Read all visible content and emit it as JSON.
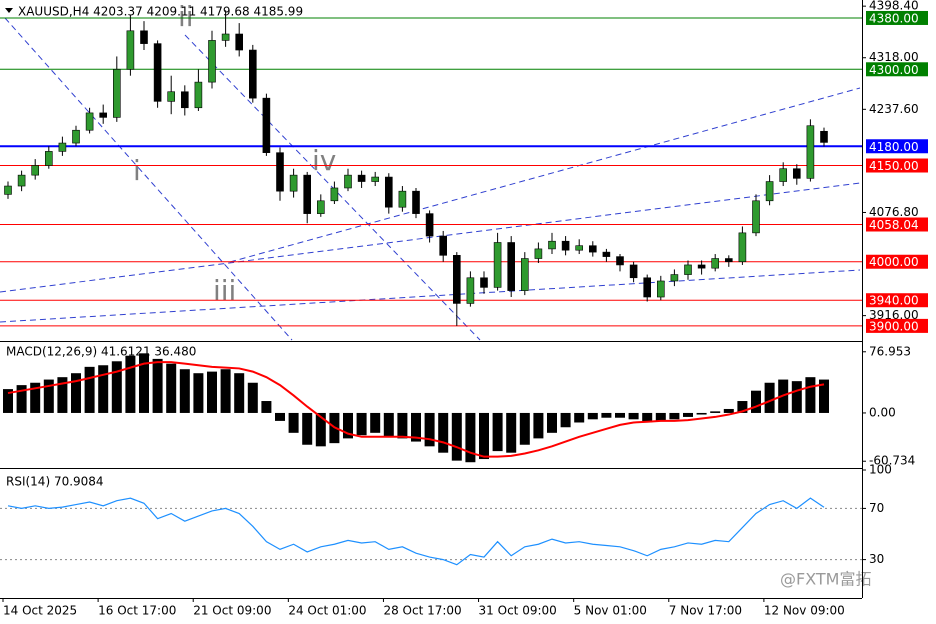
{
  "watermark": "@FXTM富拓",
  "chart_data": [
    {
      "type": "candlestick",
      "title": "XAUUSD,H4  4203.37 4209.11 4179.68 4185.99",
      "open": [
        4105,
        4118,
        4135,
        4150,
        4172,
        4185,
        4205,
        4232,
        4225,
        4300,
        4360,
        4340,
        4250,
        4265,
        4240,
        4280,
        4345,
        4355,
        4330,
        4255,
        4170,
        4110,
        4135,
        4075,
        4095,
        4115,
        4135,
        4125,
        4132,
        4085,
        4110,
        4075,
        4040,
        4010,
        3935,
        3975,
        3960,
        4030,
        3955,
        4005,
        4020,
        4032,
        4018,
        4025,
        4015,
        4008,
        3995,
        3975,
        3945,
        3970,
        3980,
        3995,
        3990,
        4005,
        4000,
        4045,
        4095,
        4125,
        4145,
        4130,
        4203.37
      ],
      "high": [
        4125,
        4142,
        4160,
        4180,
        4195,
        4212,
        4240,
        4245,
        4320,
        4385,
        4375,
        4345,
        4290,
        4275,
        4300,
        4360,
        4392,
        4372,
        4338,
        4262,
        4178,
        4145,
        4140,
        4105,
        4125,
        4145,
        4142,
        4140,
        4138,
        4118,
        4115,
        4080,
        4048,
        4015,
        3985,
        3985,
        4045,
        4040,
        4015,
        4030,
        4045,
        4040,
        4035,
        4032,
        4020,
        4012,
        4000,
        3980,
        3978,
        3988,
        4002,
        4002,
        4012,
        4010,
        4055,
        4105,
        4135,
        4155,
        4152,
        4222,
        4209.11
      ],
      "low": [
        4098,
        4110,
        4128,
        4145,
        4165,
        4180,
        4200,
        4215,
        4218,
        4290,
        4330,
        4240,
        4230,
        4228,
        4235,
        4270,
        4335,
        4320,
        4248,
        4165,
        4095,
        4100,
        4060,
        4070,
        4090,
        4110,
        4115,
        4118,
        4075,
        4078,
        4068,
        4030,
        4000,
        3900,
        3930,
        3950,
        3955,
        3945,
        3948,
        3998,
        4012,
        4010,
        4012,
        4008,
        4000,
        3985,
        3968,
        3938,
        3940,
        3962,
        3972,
        3980,
        3985,
        3992,
        3995,
        4040,
        4088,
        4118,
        4120,
        4125,
        4179.68
      ],
      "close": [
        4118,
        4135,
        4150,
        4172,
        4185,
        4205,
        4232,
        4225,
        4300,
        4360,
        4340,
        4250,
        4265,
        4240,
        4280,
        4345,
        4355,
        4330,
        4255,
        4170,
        4110,
        4135,
        4075,
        4095,
        4115,
        4135,
        4125,
        4132,
        4085,
        4110,
        4075,
        4040,
        4010,
        3935,
        3975,
        3960,
        4030,
        3955,
        4005,
        4020,
        4032,
        4018,
        4025,
        4015,
        4008,
        3995,
        3975,
        3945,
        3970,
        3980,
        3995,
        3990,
        4005,
        4000,
        4045,
        4095,
        4125,
        4145,
        4130,
        4212,
        4185.99
      ],
      "up_color": "#2f9a2f",
      "down_color": "#000000",
      "ylim": [
        3878,
        4408
      ],
      "yticks": [
        {
          "value": 4398.4,
          "label": "4398.40"
        },
        {
          "value": 4318,
          "label": "4318.00"
        },
        {
          "value": 4237.6,
          "label": "4237.60"
        },
        {
          "value": 4076.8,
          "label": "4076.80"
        },
        {
          "value": 3916,
          "label": "3916.00"
        }
      ],
      "levels": [
        {
          "value": 4380,
          "label": "4380.00",
          "color": "#008000"
        },
        {
          "value": 4300,
          "label": "4300.00",
          "color": "#008000"
        },
        {
          "value": 4180,
          "label": "4180.00",
          "color": "#0000ff"
        },
        {
          "value": 4150,
          "label": "4150.00",
          "color": "#ff0000"
        },
        {
          "value": 4058.04,
          "label": "4058.04",
          "color": "#ff0000"
        },
        {
          "value": 4000,
          "label": "4000.00",
          "color": "#ff0000"
        },
        {
          "value": 3940,
          "label": "3940.00",
          "color": "#ff0000"
        },
        {
          "value": 3900,
          "label": "3900.00",
          "color": "#ff0000"
        }
      ],
      "annotations": [
        "i",
        "ii",
        "iii",
        "iv"
      ],
      "x_tick_labels": [
        "14 Oct 2025",
        "16 Oct 17:00",
        "21 Oct 09:00",
        "24 Oct 01:00",
        "28 Oct 17:00",
        "31 Oct 09:00",
        "5 Nov 01:00",
        "7 Nov 17:00",
        "12 Nov 09:00"
      ]
    },
    {
      "type": "macd",
      "title": "MACD(12,26,9) 41.6121 36.480",
      "values": [
        30,
        35,
        38,
        42,
        45,
        50,
        58,
        60,
        65,
        72,
        75,
        68,
        62,
        55,
        50,
        52,
        55,
        50,
        38,
        15,
        -10,
        -25,
        -40,
        -42,
        -38,
        -32,
        -28,
        -25,
        -30,
        -32,
        -36,
        -42,
        -50,
        -60,
        -62,
        -58,
        -48,
        -50,
        -40,
        -32,
        -25,
        -18,
        -12,
        -8,
        -6,
        -6,
        -8,
        -12,
        -10,
        -8,
        -5,
        -2,
        2,
        5,
        15,
        28,
        38,
        42,
        40,
        45,
        42
      ],
      "signal": [
        25,
        28,
        31,
        34,
        37,
        40,
        44,
        48,
        52,
        57,
        62,
        64,
        64,
        62,
        60,
        58,
        57,
        56,
        52,
        45,
        35,
        22,
        8,
        -5,
        -18,
        -26,
        -30,
        -30,
        -30,
        -30,
        -31,
        -33,
        -37,
        -43,
        -50,
        -55,
        -55,
        -54,
        -51,
        -47,
        -42,
        -36,
        -30,
        -25,
        -20,
        -15,
        -12,
        -11,
        -10,
        -10,
        -9,
        -7,
        -5,
        -2,
        2,
        8,
        15,
        22,
        28,
        33,
        36
      ],
      "bar_color": "#000000",
      "signal_color": "#ff0000",
      "ylim": [
        -68,
        88
      ],
      "yticks": [
        76.953,
        {
          "value": 0,
          "label": "0.00"
        },
        -60.734
      ]
    },
    {
      "type": "line",
      "title": "RSI(14) 70.9084",
      "values": [
        72,
        70,
        72,
        70,
        71,
        73,
        75,
        72,
        76,
        78,
        74,
        62,
        66,
        60,
        64,
        68,
        70,
        66,
        56,
        44,
        38,
        42,
        36,
        40,
        42,
        45,
        43,
        44,
        38,
        40,
        35,
        32,
        30,
        26,
        34,
        32,
        44,
        33,
        40,
        42,
        46,
        43,
        44,
        42,
        41,
        40,
        37,
        33,
        38,
        40,
        43,
        42,
        45,
        44,
        55,
        66,
        73,
        76,
        70,
        78,
        70.9084
      ],
      "color": "#1e90ff",
      "ylim": [
        0,
        100
      ],
      "yticks": [
        100,
        70,
        30
      ],
      "levels": [
        70,
        30
      ]
    }
  ]
}
